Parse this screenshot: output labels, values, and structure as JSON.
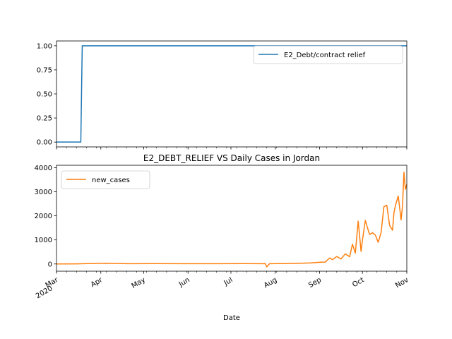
{
  "chart_data": [
    {
      "type": "line",
      "title": "",
      "xlabel": "",
      "ylabel": "",
      "ylim": [
        -0.05,
        1.05
      ],
      "yticks": [
        0.0,
        0.25,
        0.5,
        0.75,
        1.0
      ],
      "ytick_labels": [
        "0.00",
        "0.25",
        "0.50",
        "0.75",
        "1.00"
      ],
      "legend_position": "upper right",
      "series": [
        {
          "name": "E2_Debt/contract relief",
          "color": "#1f77b4",
          "x": [
            "2020-03-01",
            "2020-03-18",
            "2020-03-19",
            "2020-11-01"
          ],
          "y": [
            0,
            0,
            1,
            1
          ]
        }
      ]
    },
    {
      "type": "line",
      "title": "E2_DEBT_RELIEF VS Daily Cases in Jordan",
      "xlabel": "Date",
      "ylabel": "",
      "ylim": [
        -300,
        4100
      ],
      "yticks": [
        0,
        1000,
        2000,
        3000,
        4000
      ],
      "ytick_labels": [
        "0",
        "1000",
        "2000",
        "3000",
        "4000"
      ],
      "legend_position": "upper left",
      "series": [
        {
          "name": "new_cases",
          "color": "#ff7f0e",
          "x": [
            "2020-03-01",
            "2020-03-15",
            "2020-03-26",
            "2020-04-05",
            "2020-04-20",
            "2020-05-10",
            "2020-05-30",
            "2020-06-20",
            "2020-07-10",
            "2020-07-22",
            "2020-07-25",
            "2020-07-26",
            "2020-07-28",
            "2020-08-10",
            "2020-08-25",
            "2020-09-01",
            "2020-09-05",
            "2020-09-08",
            "2020-09-10",
            "2020-09-13",
            "2020-09-16",
            "2020-09-19",
            "2020-09-22",
            "2020-09-24",
            "2020-09-26",
            "2020-09-28",
            "2020-09-30",
            "2020-10-01",
            "2020-10-03",
            "2020-10-04",
            "2020-10-06",
            "2020-10-08",
            "2020-10-10",
            "2020-10-12",
            "2020-10-14",
            "2020-10-16",
            "2020-10-18",
            "2020-10-20",
            "2020-10-22",
            "2020-10-23",
            "2020-10-24",
            "2020-10-26",
            "2020-10-27",
            "2020-10-28",
            "2020-10-29",
            "2020-10-30",
            "2020-10-31",
            "2020-11-01"
          ],
          "y": [
            0,
            5,
            20,
            30,
            10,
            15,
            10,
            10,
            15,
            10,
            15,
            -120,
            10,
            20,
            40,
            70,
            80,
            250,
            180,
            310,
            210,
            420,
            300,
            820,
            450,
            1780,
            520,
            1000,
            1810,
            1600,
            1220,
            1300,
            1200,
            900,
            1300,
            2380,
            2440,
            1600,
            1400,
            2120,
            2420,
            2820,
            2340,
            1830,
            2400,
            3810,
            3100,
            3300
          ]
        }
      ]
    }
  ],
  "x_axis": {
    "start": "2020-03-01",
    "end": "2020-11-01",
    "ticks": [
      {
        "date": "2020-03-01",
        "label": "Mar",
        "sublabel": "2020"
      },
      {
        "date": "2020-04-01",
        "label": "Apr",
        "sublabel": ""
      },
      {
        "date": "2020-05-01",
        "label": "May",
        "sublabel": ""
      },
      {
        "date": "2020-06-01",
        "label": "Jun",
        "sublabel": ""
      },
      {
        "date": "2020-07-01",
        "label": "Jul",
        "sublabel": ""
      },
      {
        "date": "2020-08-01",
        "label": "Aug",
        "sublabel": ""
      },
      {
        "date": "2020-09-01",
        "label": "Sep",
        "sublabel": ""
      },
      {
        "date": "2020-10-01",
        "label": "Oct",
        "sublabel": ""
      },
      {
        "date": "2020-11-01",
        "label": "Nov",
        "sublabel": ""
      }
    ]
  }
}
